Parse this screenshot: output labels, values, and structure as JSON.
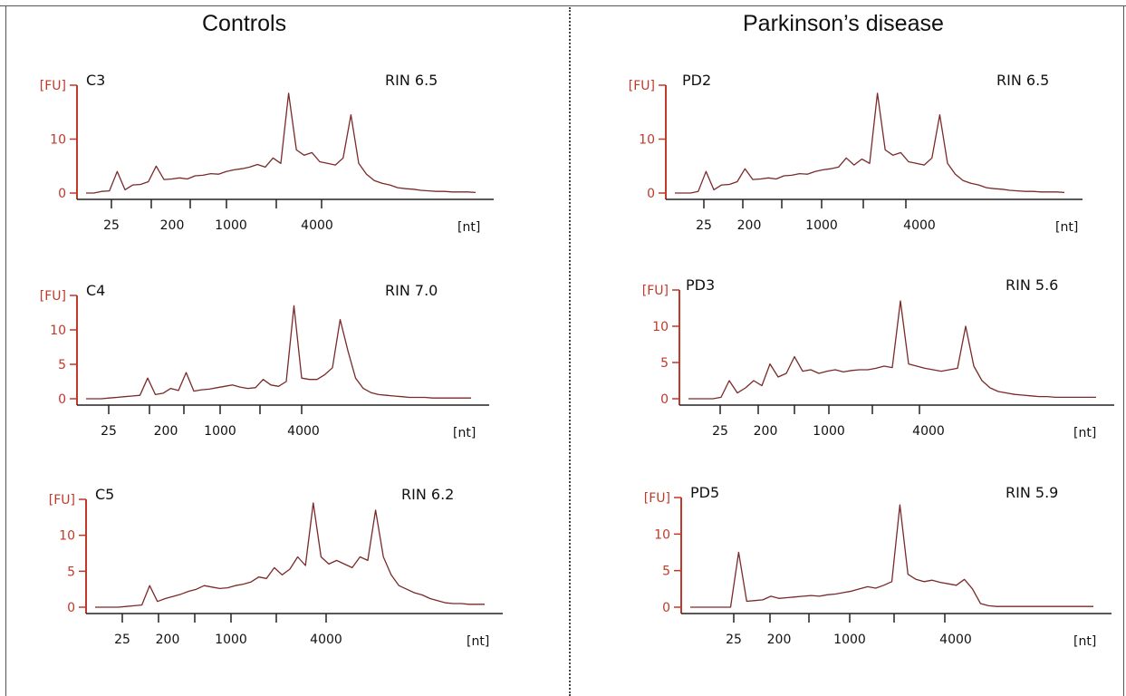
{
  "group_titles": {
    "left": "Controls",
    "right": "Parkinson’s disease"
  },
  "colors": {
    "axis": "#c0392b",
    "trace": "#7a2a2a",
    "text": "#111111"
  },
  "chart_data": [
    {
      "type": "line",
      "sample": "C3",
      "rin": "RIN 6.5",
      "ylabel": "[FU]",
      "xlabel": "[nt]",
      "y_ticks": [
        "0",
        "10"
      ],
      "y_tick_values": [
        0,
        10
      ],
      "ylim": [
        0,
        20
      ],
      "x_tick_labels": [
        "25",
        "200",
        "1000",
        "4000"
      ],
      "x": [
        0,
        2,
        4,
        6,
        8,
        10,
        12,
        14,
        16,
        18,
        20,
        22,
        24,
        26,
        28,
        30,
        32,
        34,
        36,
        38,
        40,
        42,
        44,
        46,
        48,
        50,
        52,
        54,
        56,
        58,
        60,
        62,
        64,
        66,
        68,
        70,
        72,
        74,
        76,
        78,
        80,
        82,
        84,
        86,
        88,
        90,
        92,
        94,
        96,
        98,
        100
      ],
      "y": [
        0,
        0,
        0.3,
        0.4,
        4,
        0.6,
        1.5,
        1.6,
        2.1,
        5,
        2.5,
        2.6,
        2.8,
        2.6,
        3.2,
        3.3,
        3.6,
        3.5,
        4,
        4.3,
        4.5,
        4.8,
        5.3,
        4.8,
        6.5,
        5.5,
        18.5,
        8,
        7,
        7.5,
        5.8,
        5.5,
        5.2,
        6.5,
        14.5,
        5.5,
        3.5,
        2.3,
        1.8,
        1.5,
        1,
        0.8,
        0.7,
        0.5,
        0.4,
        0.3,
        0.3,
        0.2,
        0.2,
        0.2,
        0.1
      ]
    },
    {
      "type": "line",
      "sample": "C4",
      "rin": "RIN 7.0",
      "ylabel": "[FU]",
      "xlabel": "[nt]",
      "y_ticks": [
        "0",
        "5",
        "10"
      ],
      "y_tick_values": [
        0,
        5,
        10
      ],
      "ylim": [
        0,
        15
      ],
      "x_tick_labels": [
        "25",
        "200",
        "1000",
        "4000"
      ],
      "x": [
        0,
        2,
        4,
        6,
        8,
        10,
        12,
        14,
        16,
        18,
        20,
        22,
        24,
        26,
        28,
        30,
        32,
        34,
        36,
        38,
        40,
        42,
        44,
        46,
        48,
        50,
        52,
        54,
        56,
        58,
        60,
        62,
        64,
        66,
        68,
        70,
        72,
        74,
        76,
        78,
        80,
        82,
        84,
        86,
        88,
        90,
        92,
        94,
        96,
        98,
        100
      ],
      "y": [
        0,
        0,
        0,
        0.1,
        0.2,
        0.3,
        0.4,
        0.5,
        3,
        0.6,
        0.8,
        1.5,
        1.2,
        3.8,
        1.1,
        1.3,
        1.4,
        1.6,
        1.8,
        2,
        1.7,
        1.5,
        1.6,
        2.8,
        2,
        1.8,
        2.5,
        13.5,
        3,
        2.8,
        2.8,
        3.5,
        4.5,
        11.5,
        7,
        3,
        1.5,
        0.9,
        0.6,
        0.5,
        0.4,
        0.3,
        0.2,
        0.2,
        0.2,
        0.1,
        0.1,
        0.1,
        0.1,
        0.1,
        0.1
      ]
    },
    {
      "type": "line",
      "sample": "C5",
      "rin": "RIN 6.2",
      "ylabel": "[FU]",
      "xlabel": "[nt]",
      "y_ticks": [
        "0",
        "5",
        "10"
      ],
      "y_tick_values": [
        0,
        5,
        10
      ],
      "ylim": [
        0,
        15
      ],
      "x_tick_labels": [
        "25",
        "200",
        "1000",
        "4000"
      ],
      "x": [
        0,
        2,
        4,
        6,
        8,
        10,
        12,
        14,
        16,
        18,
        20,
        22,
        24,
        26,
        28,
        30,
        32,
        34,
        36,
        38,
        40,
        42,
        44,
        46,
        48,
        50,
        52,
        54,
        56,
        58,
        60,
        62,
        64,
        66,
        68,
        70,
        72,
        74,
        76,
        78,
        80,
        82,
        84,
        86,
        88,
        90,
        92,
        94,
        96,
        98,
        100
      ],
      "y": [
        0,
        0,
        0,
        0,
        0.1,
        0.2,
        0.3,
        3,
        0.8,
        1.2,
        1.5,
        1.8,
        2.2,
        2.5,
        3,
        2.8,
        2.6,
        2.7,
        3,
        3.2,
        3.5,
        4.2,
        4,
        5.5,
        4.5,
        5.3,
        7,
        5.8,
        14.5,
        7,
        6,
        6.5,
        6,
        5.5,
        7,
        6.5,
        13.5,
        7,
        4.5,
        3,
        2.5,
        2,
        1.7,
        1.2,
        0.9,
        0.6,
        0.5,
        0.5,
        0.4,
        0.4,
        0.4
      ]
    },
    {
      "type": "line",
      "sample": "PD2",
      "rin": "RIN 6.5",
      "ylabel": "[FU]",
      "xlabel": "[nt]",
      "y_ticks": [
        "0",
        "10"
      ],
      "y_tick_values": [
        0,
        10
      ],
      "ylim": [
        0,
        20
      ],
      "x_tick_labels": [
        "25",
        "200",
        "1000",
        "4000"
      ],
      "x": [
        0,
        2,
        4,
        6,
        8,
        10,
        12,
        14,
        16,
        18,
        20,
        22,
        24,
        26,
        28,
        30,
        32,
        34,
        36,
        38,
        40,
        42,
        44,
        46,
        48,
        50,
        52,
        54,
        56,
        58,
        60,
        62,
        64,
        66,
        68,
        70,
        72,
        74,
        76,
        78,
        80,
        82,
        84,
        86,
        88,
        90,
        92,
        94,
        96,
        98,
        100
      ],
      "y": [
        0,
        0,
        0,
        0.3,
        4,
        0.6,
        1.5,
        1.6,
        2.1,
        4.5,
        2.5,
        2.6,
        2.8,
        2.6,
        3.2,
        3.3,
        3.6,
        3.5,
        4,
        4.3,
        4.5,
        4.8,
        6.5,
        5.2,
        6.3,
        5.5,
        18.5,
        8,
        7,
        7.5,
        5.8,
        5.5,
        5.2,
        6.5,
        14.5,
        5.5,
        3.5,
        2.3,
        1.8,
        1.5,
        1,
        0.8,
        0.7,
        0.5,
        0.4,
        0.3,
        0.3,
        0.2,
        0.2,
        0.2,
        0.1
      ]
    },
    {
      "type": "line",
      "sample": "PD3",
      "rin": "RIN 5.6",
      "ylabel": "[FU]",
      "xlabel": "[nt]",
      "y_ticks": [
        "0",
        "5",
        "10"
      ],
      "y_tick_values": [
        0,
        5,
        10
      ],
      "ylim": [
        0,
        15
      ],
      "x_tick_labels": [
        "25",
        "200",
        "1000",
        "4000"
      ],
      "x": [
        0,
        2,
        4,
        6,
        8,
        10,
        12,
        14,
        16,
        18,
        20,
        22,
        24,
        26,
        28,
        30,
        32,
        34,
        36,
        38,
        40,
        42,
        44,
        46,
        48,
        50,
        52,
        54,
        56,
        58,
        60,
        62,
        64,
        66,
        68,
        70,
        72,
        74,
        76,
        78,
        80,
        82,
        84,
        86,
        88,
        90,
        92,
        94,
        96,
        98,
        100
      ],
      "y": [
        0,
        0,
        0,
        0,
        0.2,
        2.5,
        0.8,
        1.5,
        2.5,
        1.8,
        4.8,
        3,
        3.5,
        5.8,
        3.8,
        4,
        3.5,
        3.8,
        4,
        3.7,
        3.9,
        4,
        4,
        4.2,
        4.5,
        4.3,
        13.5,
        4.8,
        4.5,
        4.2,
        4,
        3.8,
        4,
        4.2,
        10,
        4.5,
        2.5,
        1.5,
        1,
        0.8,
        0.6,
        0.5,
        0.4,
        0.3,
        0.3,
        0.2,
        0.2,
        0.2,
        0.2,
        0.2,
        0.2
      ]
    },
    {
      "type": "line",
      "sample": "PD5",
      "rin": "RIN 5.9",
      "ylabel": "[FU]",
      "xlabel": "[nt]",
      "y_ticks": [
        "0",
        "5",
        "10"
      ],
      "y_tick_values": [
        0,
        5,
        10
      ],
      "ylim": [
        0,
        15
      ],
      "x_tick_labels": [
        "25",
        "200",
        "1000",
        "4000"
      ],
      "x": [
        0,
        2,
        4,
        6,
        8,
        10,
        12,
        14,
        16,
        18,
        20,
        22,
        24,
        26,
        28,
        30,
        32,
        34,
        36,
        38,
        40,
        42,
        44,
        46,
        48,
        50,
        52,
        54,
        56,
        58,
        60,
        62,
        64,
        66,
        68,
        70,
        72,
        74,
        76,
        78,
        80,
        82,
        84,
        86,
        88,
        90,
        92,
        94,
        96,
        98,
        100
      ],
      "y": [
        0,
        0,
        0,
        0,
        0,
        0,
        7.5,
        0.8,
        0.9,
        1,
        1.5,
        1.2,
        1.3,
        1.4,
        1.5,
        1.6,
        1.5,
        1.7,
        1.8,
        2,
        2.2,
        2.5,
        2.8,
        2.6,
        3,
        3.5,
        14,
        4.5,
        3.8,
        3.5,
        3.7,
        3.4,
        3.2,
        3,
        3.8,
        2.5,
        0.5,
        0.2,
        0.1,
        0.1,
        0.1,
        0.1,
        0.1,
        0.1,
        0.1,
        0.1,
        0.1,
        0.1,
        0.1,
        0.1,
        0.1
      ]
    }
  ]
}
